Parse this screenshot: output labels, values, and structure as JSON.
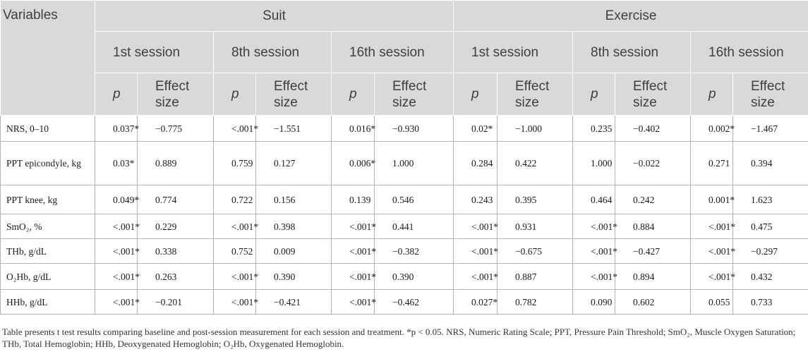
{
  "header": {
    "variables": "Variables",
    "groups": [
      "Suit",
      "Exercise"
    ],
    "sessions": [
      "1st session",
      "8th session",
      "16th session",
      "1st session",
      "8th session",
      "16th session"
    ],
    "p_label": "p",
    "effect_label": "Effect size"
  },
  "rows": [
    {
      "label": "NRS, 0–10",
      "cells": [
        "0.037*",
        "−0.775",
        "<.001*",
        "−1.551",
        "0.016*",
        "−0.930",
        "0.02*",
        "−1.000",
        "0.235",
        "−0.402",
        "0.002*",
        "−1.467"
      ]
    },
    {
      "label": "PPT epicondyle, kg",
      "cells": [
        "0.03*",
        "0.889",
        "0.759",
        "0.127",
        "0.006*",
        "1.000",
        "0.284",
        "0.422",
        "1.000",
        "−0.022",
        "0.271",
        "0.394"
      ]
    },
    {
      "label": "PPT knee, kg",
      "cells": [
        "0.049*",
        "0.774",
        "0.722",
        "0.156",
        "0.139",
        "0.546",
        "0.243",
        "0.395",
        "0.464",
        "0.242",
        "0.001*",
        "1.623"
      ]
    },
    {
      "label": "SmO₂, %",
      "cells": [
        "<.001*",
        "0.229",
        "<.001*",
        "0.398",
        "<.001*",
        "0.441",
        "<.001*",
        "0.931",
        "<.001*",
        "0.884",
        "<.001*",
        "0.475"
      ]
    },
    {
      "label": "THb, g/dL",
      "cells": [
        "<.001*",
        "0.338",
        "0.752",
        "0.009",
        "<.001*",
        "−0.382",
        "<.001*",
        "−0.675",
        "<.001*",
        "−0.427",
        "<.001*",
        "−0.297"
      ]
    },
    {
      "label": "O₂Hb, g/dL",
      "cells": [
        "<.001*",
        "0.263",
        "<.001*",
        "0.390",
        "<.001*",
        "0.390",
        "<.001*",
        "0.887",
        "<.001*",
        "0.894",
        "<.001*",
        "0.432"
      ]
    },
    {
      "label": "HHb, g/dL",
      "cells": [
        "<.001*",
        "−0.201",
        "<.001*",
        "−0.421",
        "<.001*",
        "−0.462",
        "0.027*",
        "0.782",
        "0.090",
        "0.602",
        "0.055",
        "0.733"
      ]
    }
  ],
  "footnote": "Table presents t test results comparing baseline and post-session measurement for each session and treatment. *p < 0.05. NRS, Numeric Rating Scale; PPT, Pressure Pain Threshold; SmO₂, Muscle Oxygen Saturation; THb, Total Hemoglobin; HHb, Deoxygenated Hemoglobin; O₂Hb, Oxygenated Hemoglobin."
}
